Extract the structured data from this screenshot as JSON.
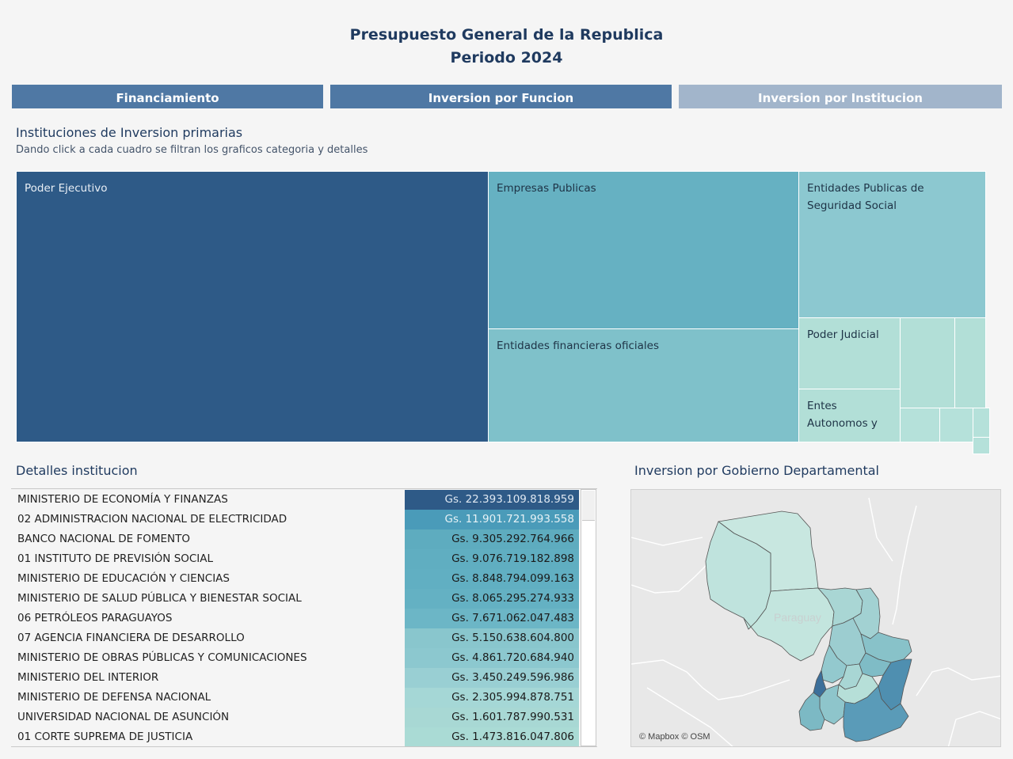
{
  "header": {
    "title_line1": "Presupuesto General de la Republica",
    "title_line2": "Periodo 2024"
  },
  "nav": {
    "financiamiento": "Financiamiento",
    "funcion": "Inversion por Funcion",
    "institucion": "Inversion por Institucion"
  },
  "treemap": {
    "title": "Instituciones de Inversion primarias",
    "subtitle": "Dando click a cada cuadro se filtran los graficos categoria y detalles",
    "tiles": {
      "poder_ejecutivo": "Poder Ejecutivo",
      "empresas_publicas": "Empresas Publicas",
      "seguridad_social": "Entidades Publicas de Seguridad Social",
      "financieras": "Entidades financieras oficiales",
      "poder_judicial": "Poder Judicial",
      "entes_autonomos": "Entes Autonomos y"
    }
  },
  "details": {
    "title": "Detalles institucion",
    "rows": [
      {
        "name": "MINISTERIO DE ECONOMÍA Y FINANZAS",
        "value": "Gs. 22.393.109.818.959"
      },
      {
        "name": "02 ADMINISTRACION NACIONAL DE ELECTRICIDAD",
        "value": "Gs. 11.901.721.993.558"
      },
      {
        "name": "BANCO NACIONAL DE FOMENTO",
        "value": "Gs. 9.305.292.764.966"
      },
      {
        "name": "01 INSTITUTO DE PREVISIÓN SOCIAL",
        "value": "Gs. 9.076.719.182.898"
      },
      {
        "name": "MINISTERIO DE EDUCACIÓN Y CIENCIAS",
        "value": "Gs. 8.848.794.099.163"
      },
      {
        "name": "MINISTERIO DE SALUD PÚBLICA Y BIENESTAR SOCIAL",
        "value": "Gs. 8.065.295.274.933"
      },
      {
        "name": "06 PETRÓLEOS PARAGUAYOS",
        "value": "Gs. 7.671.062.047.483"
      },
      {
        "name": "07 AGENCIA FINANCIERA DE DESARROLLO",
        "value": "Gs. 5.150.638.604.800"
      },
      {
        "name": "MINISTERIO DE OBRAS PÚBLICAS Y COMUNICACIONES",
        "value": "Gs. 4.861.720.684.940"
      },
      {
        "name": "MINISTERIO DEL INTERIOR",
        "value": "Gs. 3.450.249.596.986"
      },
      {
        "name": "MINISTERIO DE DEFENSA NACIONAL",
        "value": "Gs. 2.305.994.878.751"
      },
      {
        "name": "UNIVERSIDAD NACIONAL DE ASUNCIÓN",
        "value": "Gs. 1.601.787.990.531"
      },
      {
        "name": "01 CORTE SUPREMA DE JUSTICIA",
        "value": "Gs. 1.473.816.047.806"
      }
    ]
  },
  "map": {
    "title": "Inversion por Gobierno Departamental",
    "country_label": "Paraguay",
    "attribution": "© Mapbox © OSM"
  }
}
